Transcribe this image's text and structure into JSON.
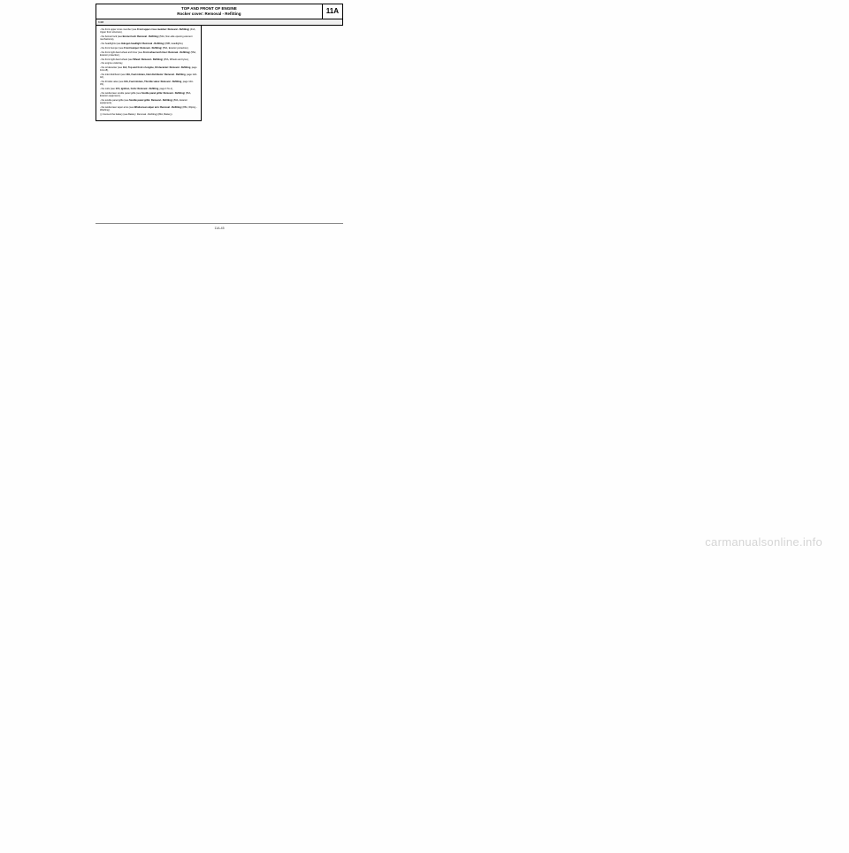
{
  "header": {
    "title_line1": "TOP AND FRONT OF ENGINE",
    "title_line2": "Rocker cover: Removal - Refitting",
    "code": "11A"
  },
  "edition": "K4M",
  "items": [
    {
      "lead": "- the front upper cross member (see ",
      "bold": "Front upper cross member: Removal - Refitting",
      "trail": ") (41A, Upper front structure),"
    },
    {
      "lead": "- the bonnet lock (see ",
      "bold": "Bonnet lock: Removal - Refitting",
      "trail": ") (52A, Non-side opening element mechanisms),"
    },
    {
      "lead": "- the headlights (see ",
      "bold": "Halogen headlight: Removal - Refitting",
      "trail": ") (80B, Headlights),"
    },
    {
      "lead": "- the front bumper (see ",
      "bold": "Front bumper: Removal - Refitting",
      "trail": ") (55A, Exterior protection),"
    },
    {
      "lead": "- the front right-hand wheel arch liner (see ",
      "bold": "Front wheel arch liner: Removal - Refitting",
      "trail": ") (55A, Exterior protection),"
    },
    {
      "lead": "- the front right-hand wheel (see ",
      "bold": "Wheel: Removal - Refitting",
      "trail": ") (35A, Wheels and tyres),"
    },
    {
      "lead": "- the engine undertray,",
      "bold": "",
      "trail": ""
    },
    {
      "lead": "- the oil decanter (see ",
      "bold": "11A, Top and front of engine, Oil decanter: Removal - Refitting",
      "trail": ", page 11A-18),"
    },
    {
      "lead": "- the inlet distributor (see ",
      "bold": "12A, Fuel mixture, Inlet distributor: Removal - Refitting",
      "trail": ", page 12A-42),"
    },
    {
      "lead": "- the throttle valve (see ",
      "bold": "12A, Fuel mixture, Throttle valve: Removal - Refitting",
      "trail": ", page 12A-33),"
    },
    {
      "lead": "- the coils (see ",
      "bold": "17A, Ignition, Coils: Removal - Refitting",
      "trail": ", page 17A-1),"
    },
    {
      "lead": "- the windscreen scuttle panel grille (see ",
      "bold": "Scuttle panel grille: Removal - Refitting",
      "trail": ") (56A, Exterior equipment),"
    },
    {
      "lead": "- the scuttle panel grille (see ",
      "bold": "Scuttle panel grille: Removal - Refitting",
      "trail": ") (56A, Exterior equipment),"
    },
    {
      "lead": "- the windscreen wiper arms (see ",
      "bold": "Windscreen wiper arm: Removal - Refitting",
      "trail": ") (85A, Wiping - Washing)."
    }
  ],
  "last_item": {
    "lead": "❏ Connect the battery (see ",
    "bold": "Battery: Removal - Refitting",
    "trail": ") (80A, Battery)."
  },
  "page_number": "11A-45",
  "watermark": "carmanualsonline.info"
}
